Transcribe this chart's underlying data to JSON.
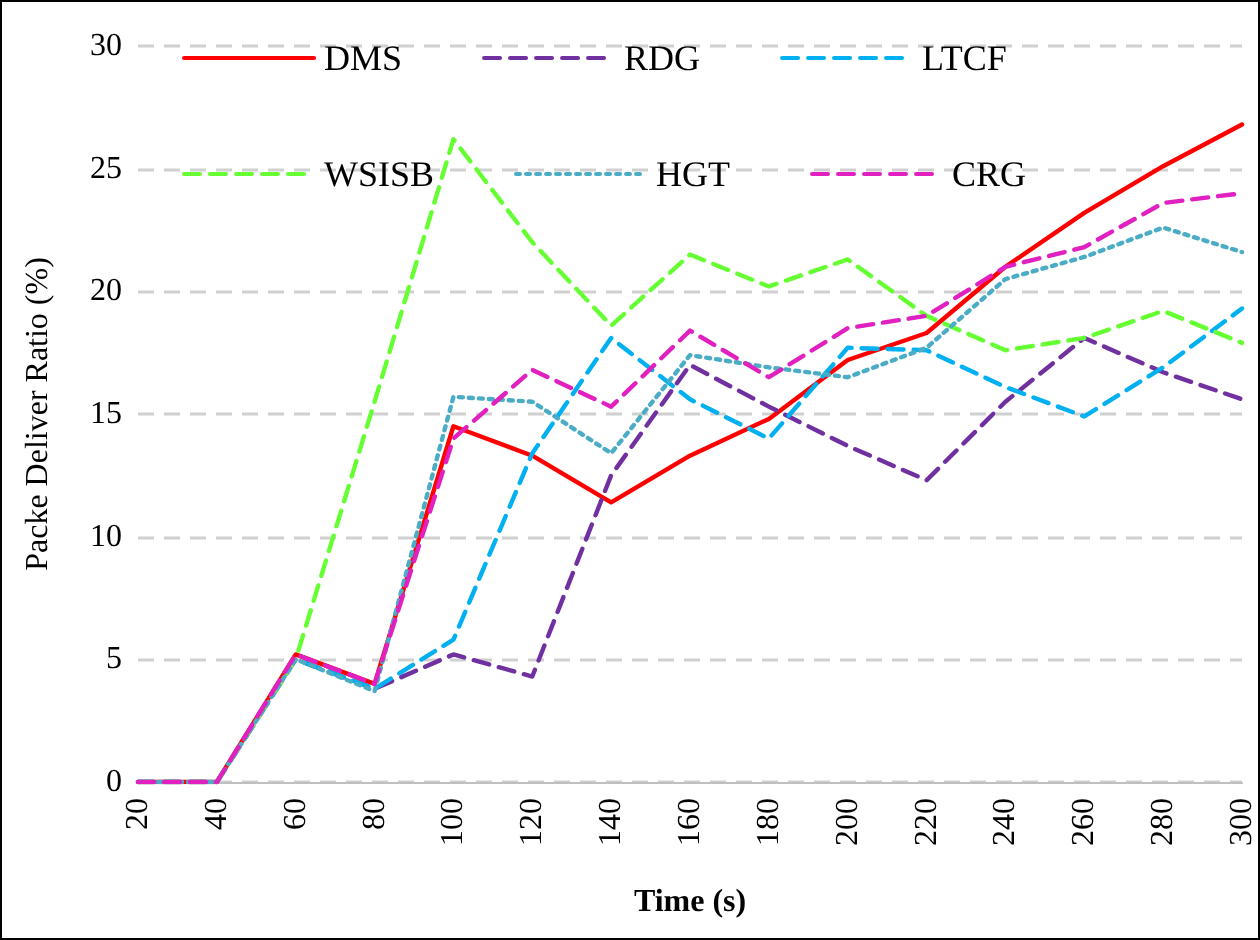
{
  "chart_data": {
    "type": "line",
    "xlabel": "Time (s)",
    "ylabel": "Packe Deliver Ratio (%)",
    "categories": [
      "20",
      "40",
      "60",
      "80",
      "100",
      "120",
      "140",
      "160",
      "180",
      "200",
      "220",
      "240",
      "260",
      "280",
      "300"
    ],
    "series": [
      {
        "name": "DMS",
        "color": "#ff0000",
        "line_style": "solid",
        "values": [
          0,
          0,
          5.2,
          4,
          14.5,
          13.3,
          11.4,
          13.3,
          14.8,
          17.2,
          18.3,
          21,
          23.2,
          25.1,
          26.8
        ]
      },
      {
        "name": "RDG",
        "color": "#7030a0",
        "line_style": "dashed",
        "values": [
          0,
          0,
          5,
          3.8,
          5.2,
          4.3,
          12.5,
          17,
          15.3,
          13.7,
          12.3,
          15.5,
          18.1,
          16.7,
          15.6
        ]
      },
      {
        "name": "LTCF",
        "color": "#00b0f0",
        "line_style": "dashed",
        "values": [
          0,
          0,
          5,
          3.8,
          5.8,
          13.4,
          18.1,
          15.6,
          14,
          17.7,
          17.6,
          16.1,
          14.9,
          16.9,
          19.3
        ]
      },
      {
        "name": "WSISB",
        "color": "#66ff33",
        "line_style": "dashed",
        "values": [
          0,
          0,
          5,
          15.5,
          26.2,
          22,
          18.6,
          21.5,
          20.2,
          21.3,
          19,
          17.6,
          18.1,
          19.2,
          17.9
        ]
      },
      {
        "name": "HGT",
        "color": "#4bacc6",
        "line_style": "dotted",
        "values": [
          0,
          0,
          5,
          3.7,
          15.7,
          15.5,
          13.4,
          17.4,
          16.9,
          16.5,
          17.7,
          20.5,
          21.4,
          22.6,
          21.6
        ]
      },
      {
        "name": "CRG",
        "color": "#e020c0",
        "line_style": "dashed",
        "values": [
          0,
          0,
          5.2,
          4,
          14,
          16.8,
          15.3,
          18.4,
          16.5,
          18.5,
          19,
          21,
          21.8,
          23.6,
          24
        ]
      }
    ],
    "ylim": [
      0,
      30
    ],
    "yticks": [
      0,
      5,
      10,
      15,
      20,
      25,
      30
    ],
    "grid": "y",
    "legend": "top",
    "marker": "none"
  }
}
